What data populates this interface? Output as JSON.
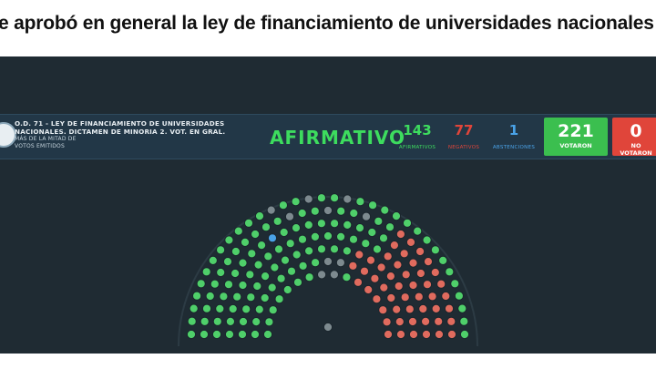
{
  "headline": "e aprobó en general la ley de financiamiento de universidades nacionales",
  "board": {
    "motion_line1": "O.D. 71 - LEY DE FINANCIAMIENTO DE UNIVERSIDADES",
    "motion_line2": "NACIONALES. DICTAMEN DE MINORIA 2. VOT. EN GRAL.",
    "majority_line1": "MÁS DE LA MITAD DE",
    "majority_line2": "VOTOS EMITIDOS",
    "result": "AFIRMATIVO",
    "afirmativos": {
      "value": "143",
      "label": "AFIRMATIVOS",
      "color": "#3ddc5e"
    },
    "negativos": {
      "value": "77",
      "label": "NEGATIVOS",
      "color": "#e0453a"
    },
    "abstenciones": {
      "value": "1",
      "label": "ABSTENCIONES",
      "color": "#4aa3e8"
    },
    "votaron": {
      "value": "221",
      "label": "VOTARON",
      "color": "#3bbf4f"
    },
    "no_votaron": {
      "value": "0",
      "label_line1": "NO",
      "label_line2": "VOTARON",
      "color": "#e0453a"
    }
  },
  "hemicycle": {
    "seat_colors": {
      "afirmativo": "#4fcf6a",
      "negativo": "#e06b5e",
      "abstencion": "#4aa3e8",
      "ausente": "#7d8a8f"
    },
    "seat_counts": {
      "afirmativo": 143,
      "negativo": 77,
      "abstencion": 1,
      "ausente": 36
    }
  }
}
